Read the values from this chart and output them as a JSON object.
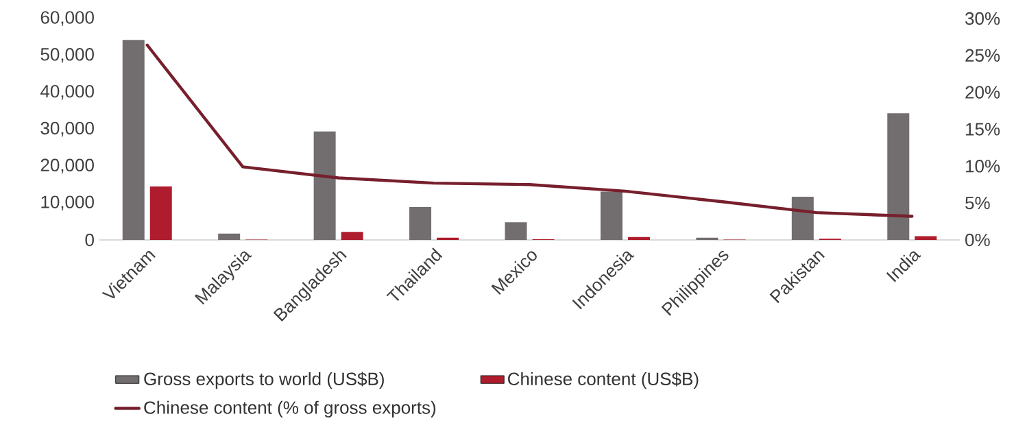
{
  "chart_data": {
    "type": "bar",
    "categories": [
      "Vietnam",
      "Malaysia",
      "Bangladesh",
      "Thailand",
      "Mexico",
      "Indonesia",
      "Philippines",
      "Pakistan",
      "India"
    ],
    "series": [
      {
        "name": "Gross exports to world (US$B)",
        "color": "#726d6e",
        "values": [
          54200,
          1700,
          29400,
          8900,
          4800,
          13100,
          600,
          11700,
          34300
        ]
      },
      {
        "name": "Chinese content (US$B)",
        "color": "#ae1c2d",
        "values": [
          14500,
          100,
          2200,
          600,
          200,
          800,
          100,
          300,
          1000
        ]
      },
      {
        "name": "Chinese content (% of gross exports)",
        "type": "line",
        "axis": "y2",
        "color": "#771f2d",
        "values": [
          26.4,
          9.9,
          8.4,
          7.7,
          7.5,
          6.6,
          5.2,
          3.7,
          3.2
        ]
      }
    ],
    "ylim": [
      0,
      60000
    ],
    "yticks": [
      {
        "value": 0,
        "label": "0"
      },
      {
        "value": 10000,
        "label": "10,000"
      },
      {
        "value": 20000,
        "label": "20,000"
      },
      {
        "value": 30000,
        "label": "30,000"
      },
      {
        "value": 40000,
        "label": "40,000"
      },
      {
        "value": 50000,
        "label": "50,000"
      },
      {
        "value": 60000,
        "label": "60,000"
      }
    ],
    "y2lim": [
      0,
      30
    ],
    "y2ticks": [
      {
        "value": 0,
        "label": "0%"
      },
      {
        "value": 5,
        "label": "5%"
      },
      {
        "value": 10,
        "label": "10%"
      },
      {
        "value": 15,
        "label": "15%"
      },
      {
        "value": 20,
        "label": "20%"
      },
      {
        "value": 25,
        "label": "25%"
      },
      {
        "value": 30,
        "label": "30%"
      }
    ],
    "legend": "bottom"
  }
}
